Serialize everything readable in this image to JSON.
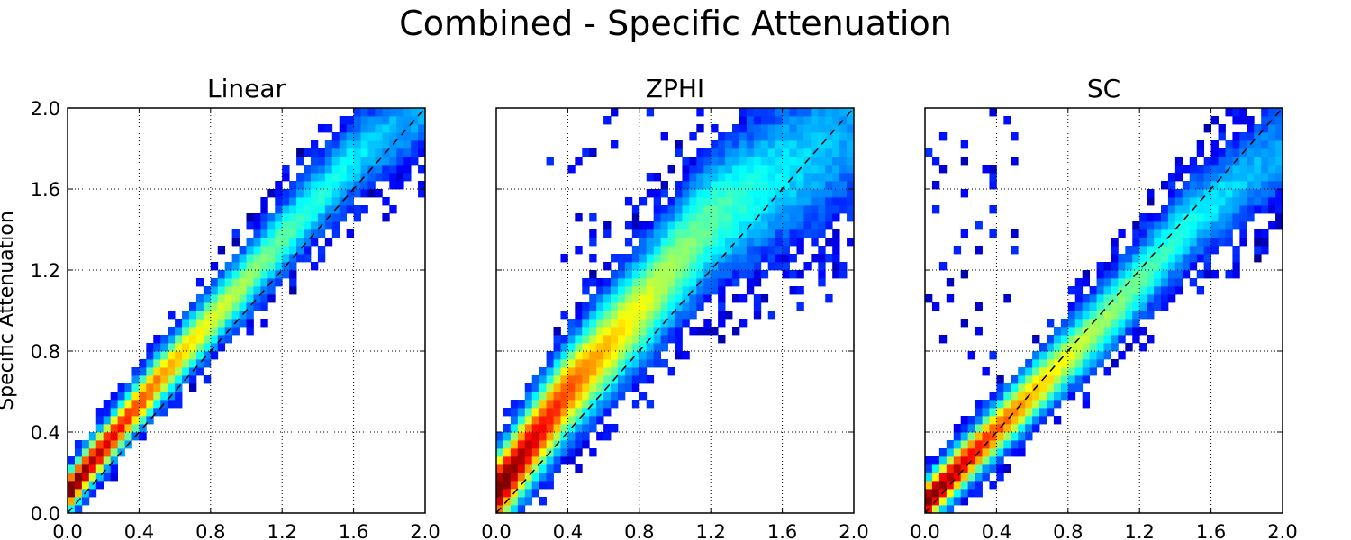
{
  "figure": {
    "title": "Combined - Specific Attenuation",
    "ylabel": "Specific Attenuation"
  },
  "colors": {
    "colormap": "jet",
    "jet_stops": [
      "#00007f",
      "#0000ff",
      "#007fff",
      "#00ffff",
      "#7fff7f",
      "#ffff00",
      "#ff7f00",
      "#ff0000",
      "#7f0000"
    ],
    "reference_line": "#000000",
    "grid": "#000000",
    "axes": "#000000"
  },
  "chart_data": [
    {
      "type": "heatmap",
      "title": "Linear",
      "xlim": [
        0.0,
        2.0
      ],
      "ylim": [
        0.0,
        2.0
      ],
      "xticks": [
        "0.0",
        "0.4",
        "0.8",
        "1.2",
        "1.6",
        "2.0"
      ],
      "yticks": [
        "0.0",
        "0.4",
        "0.8",
        "1.2",
        "1.6",
        "2.0"
      ],
      "grid": true,
      "grid_style": "dotted",
      "reference_line": {
        "style": "dashed",
        "x": [
          0.0,
          2.0
        ],
        "y": [
          0.0,
          2.0
        ]
      },
      "bin_size": 0.04,
      "density_ridge": {
        "x": [
          0.0,
          0.5,
          1.0,
          1.6,
          2.0
        ],
        "y": [
          0.1,
          0.65,
          1.15,
          1.75,
          2.0
        ]
      },
      "spread": 0.12,
      "outliers_sparse": {
        "x": [
          1.3,
          2.0
        ],
        "y": [
          1.5,
          2.0
        ]
      }
    },
    {
      "type": "heatmap",
      "title": "ZPHI",
      "xlim": [
        0.0,
        2.0
      ],
      "ylim": [
        0.0,
        2.0
      ],
      "xticks": [
        "0.0",
        "0.4",
        "0.8",
        "1.2",
        "1.6",
        "2.0"
      ],
      "yticks": [
        "",
        "",
        "",
        "",
        "",
        ""
      ],
      "grid": true,
      "grid_style": "dotted",
      "reference_line": {
        "style": "dashed",
        "x": [
          0.0,
          2.0
        ],
        "y": [
          0.0,
          2.0
        ]
      },
      "bin_size": 0.04,
      "density_ridge": {
        "x": [
          0.0,
          0.4,
          0.8,
          1.2,
          2.0
        ],
        "y": [
          0.1,
          0.6,
          1.0,
          1.45,
          1.9
        ]
      },
      "spread": 0.22,
      "outliers_sparse": {
        "x": [
          0.3,
          2.0
        ],
        "y": [
          1.2,
          2.0
        ]
      }
    },
    {
      "type": "heatmap",
      "title": "SC",
      "xlim": [
        0.0,
        2.0
      ],
      "ylim": [
        0.0,
        2.0
      ],
      "xticks": [
        "0.0",
        "0.4",
        "0.8",
        "1.2",
        "1.6",
        "2.0"
      ],
      "yticks": [
        "",
        "",
        "",
        "",
        "",
        ""
      ],
      "grid": true,
      "grid_style": "dotted",
      "reference_line": {
        "style": "dashed",
        "x": [
          0.0,
          2.0
        ],
        "y": [
          0.0,
          2.0
        ]
      },
      "bin_size": 0.04,
      "density_ridge": {
        "x": [
          0.0,
          0.5,
          1.0,
          1.5,
          2.0
        ],
        "y": [
          0.05,
          0.5,
          0.95,
          1.45,
          1.8
        ]
      },
      "spread": 0.13,
      "outliers_sparse": {
        "x": [
          0.0,
          0.5
        ],
        "y": [
          0.7,
          2.0
        ]
      }
    }
  ]
}
